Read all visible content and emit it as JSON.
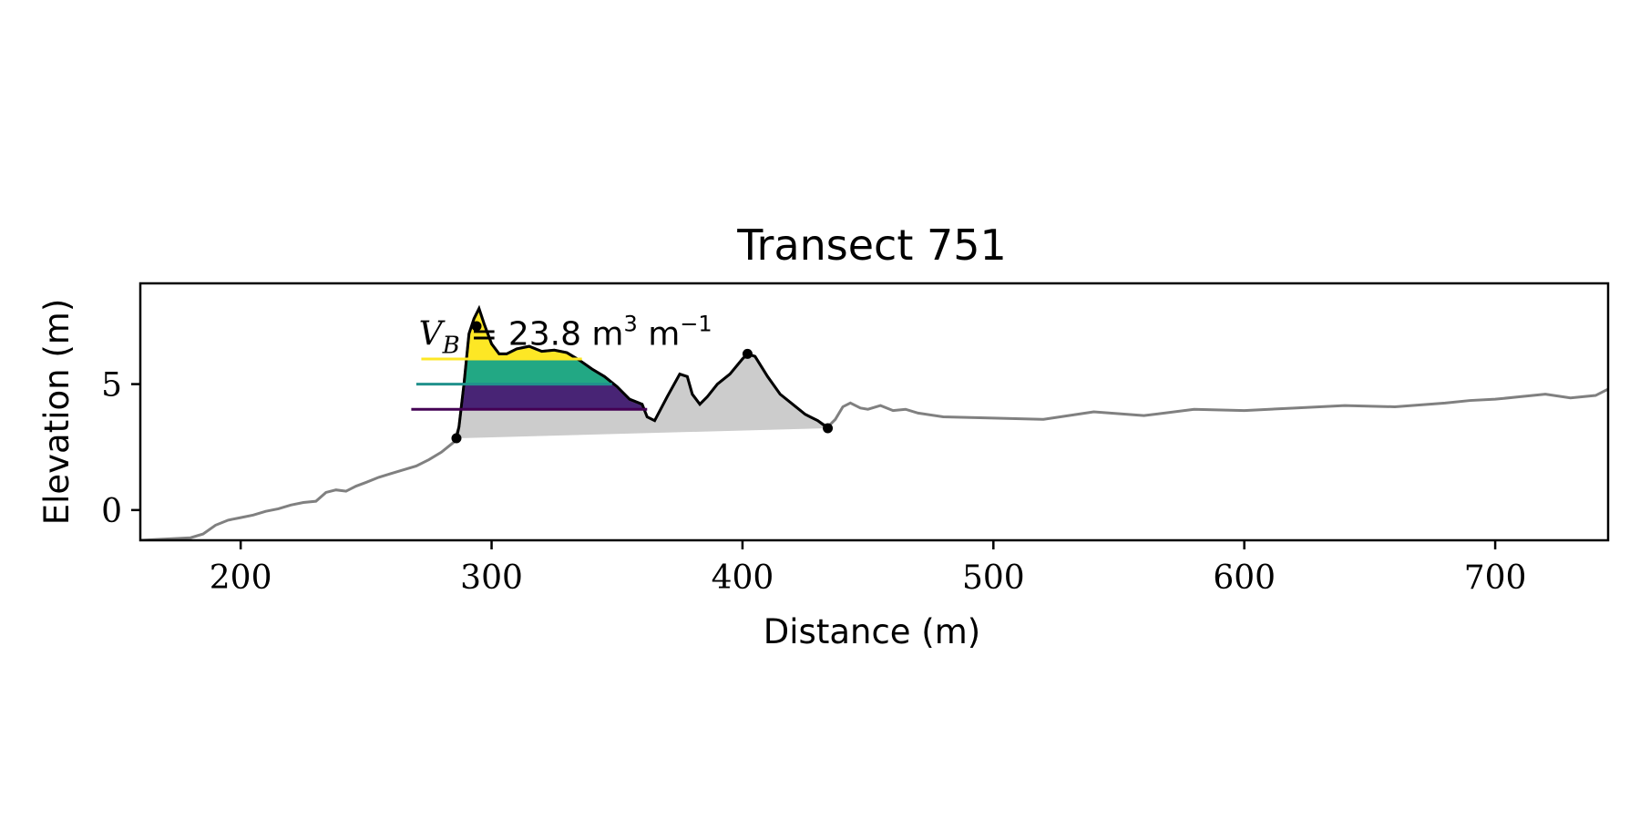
{
  "chart_data": {
    "type": "line",
    "title": "Transect 751",
    "xlabel": "Distance (m)",
    "ylabel": "Elevation (m)",
    "xlim": [
      160,
      745
    ],
    "ylim": [
      -1.2,
      9.0
    ],
    "xticks": [
      200,
      300,
      400,
      500,
      600,
      700
    ],
    "yticks": [
      0,
      5
    ],
    "grid": false,
    "legend": "none",
    "profile": {
      "x": [
        160,
        170,
        180,
        185,
        190,
        195,
        200,
        205,
        210,
        215,
        220,
        225,
        230,
        234,
        238,
        242,
        246,
        250,
        255,
        260,
        265,
        270,
        275,
        280,
        285,
        287,
        289,
        291,
        293,
        295,
        297,
        300,
        303,
        306,
        310,
        315,
        320,
        325,
        330,
        335,
        340,
        345,
        350,
        355,
        360,
        362,
        365,
        370,
        375,
        378,
        380,
        383,
        386,
        390,
        395,
        400,
        402,
        405,
        410,
        415,
        420,
        425,
        430,
        434,
        437,
        440,
        443,
        447,
        450,
        455,
        460,
        465,
        470,
        480,
        500,
        520,
        540,
        560,
        580,
        600,
        620,
        640,
        660,
        680,
        690,
        700,
        710,
        720,
        730,
        740,
        745
      ],
      "y": [
        -1.2,
        -1.15,
        -1.1,
        -0.95,
        -0.6,
        -0.4,
        -0.3,
        -0.2,
        -0.05,
        0.05,
        0.2,
        0.3,
        0.35,
        0.7,
        0.8,
        0.75,
        0.95,
        1.1,
        1.3,
        1.45,
        1.6,
        1.75,
        2.0,
        2.3,
        2.7,
        3.3,
        5.0,
        7.0,
        7.6,
        8.0,
        7.4,
        6.6,
        6.2,
        6.2,
        6.4,
        6.5,
        6.3,
        6.35,
        6.25,
        5.95,
        5.6,
        5.3,
        4.9,
        4.4,
        4.2,
        3.7,
        3.55,
        4.5,
        5.4,
        5.3,
        4.6,
        4.2,
        4.5,
        5.0,
        5.4,
        6.0,
        6.2,
        6.1,
        5.3,
        4.6,
        4.2,
        3.8,
        3.55,
        3.3,
        3.6,
        4.1,
        4.25,
        4.05,
        4.0,
        4.15,
        3.95,
        4.0,
        3.85,
        3.7,
        3.65,
        3.6,
        3.9,
        3.75,
        4.0,
        3.95,
        4.05,
        4.15,
        4.1,
        4.25,
        4.35,
        4.4,
        4.5,
        4.6,
        4.45,
        4.55,
        4.8
      ]
    },
    "dune_points": {
      "x": [
        286,
        294,
        402,
        434
      ],
      "y": [
        2.85,
        7.3,
        6.2,
        3.25
      ]
    },
    "volume_levels": [
      {
        "level": 6.0,
        "x_start": 272,
        "x_end": 336,
        "color": "#fde725"
      },
      {
        "level": 5.0,
        "x_start": 270,
        "x_end": 348,
        "color": "#21918c"
      },
      {
        "level": 4.0,
        "x_start": 268,
        "x_end": 362,
        "color": "#440154"
      }
    ],
    "fill_colors": {
      "top": "#fde725",
      "middle": "#22a884",
      "bottom": "#482475",
      "base": "#cccccc"
    },
    "line_colors": {
      "profile": "#808080",
      "dune": "#000000"
    },
    "annotation": {
      "symbol": "V",
      "subscript": "B",
      "text": "= 23.8 m",
      "exp1": "3",
      "unit2": "m",
      "exp2": "−1",
      "x": 271,
      "y": 6.55
    }
  }
}
